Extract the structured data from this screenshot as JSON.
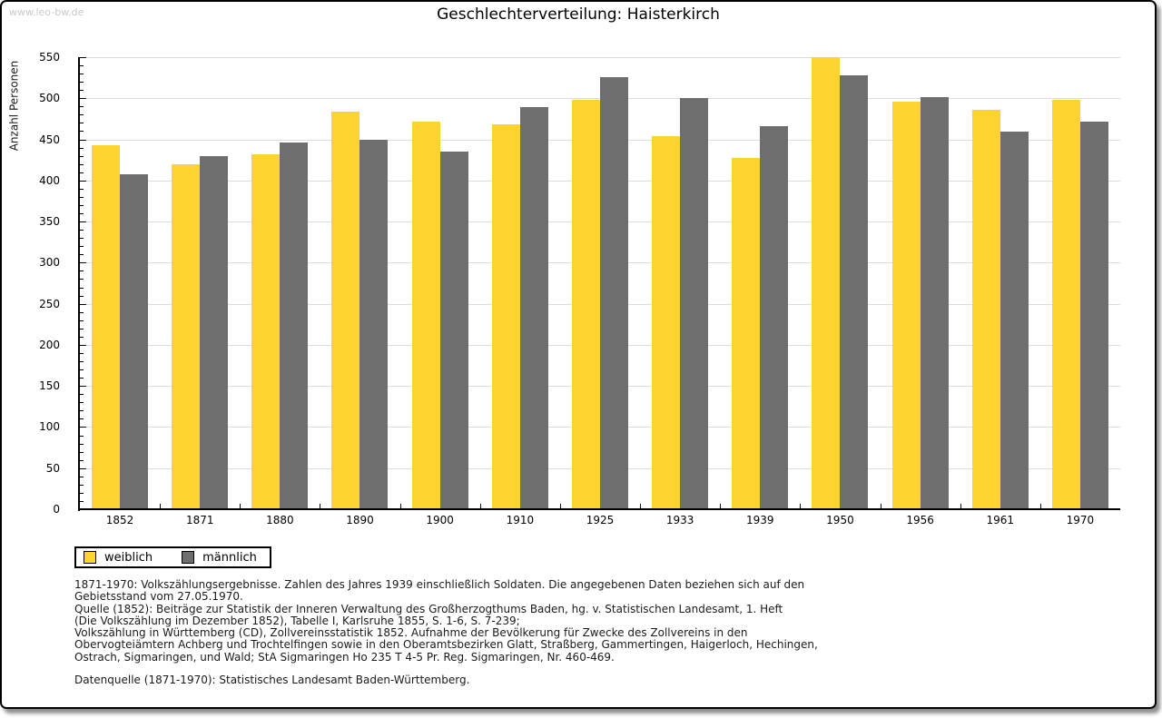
{
  "watermark": "www.leo-bw.de",
  "title": "Geschlechterverteilung: Haisterkirch",
  "y_axis_label": "Anzahl Personen",
  "chart_data": {
    "type": "bar",
    "categories": [
      "1852",
      "1871",
      "1880",
      "1890",
      "1900",
      "1910",
      "1925",
      "1933",
      "1939",
      "1950",
      "1956",
      "1961",
      "1970"
    ],
    "series": [
      {
        "name": "weiblich",
        "color": "#fdd330",
        "values": [
          443,
          420,
          432,
          484,
          472,
          468,
          498,
          454,
          427,
          550,
          496,
          486,
          498
        ]
      },
      {
        "name": "männlich",
        "color": "#6e6e6e",
        "values": [
          408,
          430,
          446,
          450,
          435,
          489,
          526,
          500,
          466,
          528,
          501,
          460,
          472
        ]
      }
    ],
    "title": "Geschlechterverteilung: Haisterkirch",
    "xlabel": "",
    "ylabel": "Anzahl Personen",
    "ylim": [
      0,
      550
    ],
    "ytick_step": 50,
    "ytick_minor_step": 10,
    "grid": true,
    "legend_position": "bottom-left"
  },
  "legend": {
    "items": [
      {
        "label": "weiblich",
        "color": "#fdd330"
      },
      {
        "label": "männlich",
        "color": "#6e6e6e"
      }
    ]
  },
  "footnotes": [
    "1871-1970: Volkszählungsergebnisse. Zahlen des Jahres 1939 einschließlich Soldaten. Die angegebenen Daten beziehen sich auf den",
    "Gebietsstand vom 27.05.1970.",
    "Quelle (1852): Beiträge zur Statistik der Inneren Verwaltung des Großherzogthums Baden, hg. v. Statistischen Landesamt, 1. Heft",
    "(Die Volkszählung im Dezember 1852), Tabelle I, Karlsruhe 1855, S. 1-6, S. 7-239;",
    "Volkszählung in Württemberg (CD), Zollvereinsstatistik 1852. Aufnahme der Bevölkerung für Zwecke des Zollvereins in den",
    "Obervogteiämtern Achberg und Trochtelfingen sowie in den Oberamtsbezirken Glatt, Straßberg, Gammertingen, Haigerloch, Hechingen,",
    "Ostrach, Sigmaringen, und Wald; StA Sigmaringen Ho 235 T 4-5 Pr. Reg. Sigmaringen, Nr. 460-469."
  ],
  "datasource": "Datenquelle (1871-1970): Statistisches Landesamt Baden-Württemberg.",
  "colors": {
    "bar_female": "#fdd330",
    "bar_male": "#6e6e6e",
    "gridline": "#dcdcdc",
    "axis": "#000000",
    "watermark": "#c9c9c9",
    "background": "#ffffff"
  }
}
